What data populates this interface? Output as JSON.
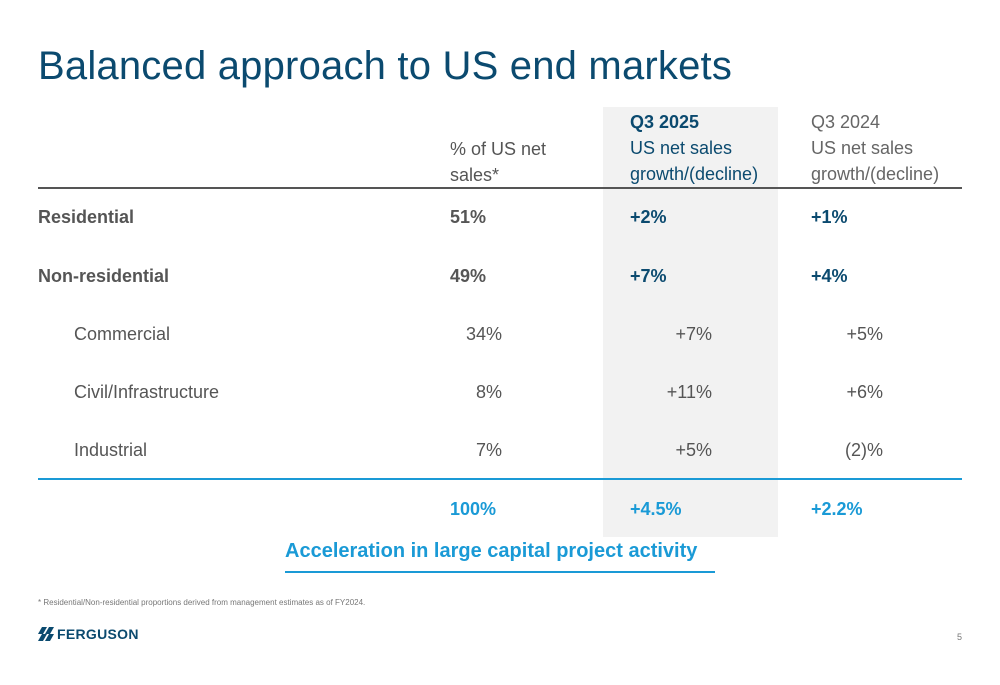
{
  "title": "Balanced approach to US end markets",
  "headers": {
    "pct": [
      "% of US net",
      "sales*"
    ],
    "q3_2025": [
      "Q3 2025",
      "US net sales",
      "growth/(decline)"
    ],
    "q3_2024": [
      "Q3 2024",
      "US net sales",
      "growth/(decline)"
    ]
  },
  "rows": [
    {
      "label": "Residential",
      "pct": "51%",
      "q3_2025": "+2%",
      "q3_2024": "+1%"
    },
    {
      "label": "Non-residential",
      "pct": "49%",
      "q3_2025": "+7%",
      "q3_2024": "+4%"
    },
    {
      "label": "Commercial",
      "pct": "34%",
      "q3_2025": "+7%",
      "q3_2024": "+5%"
    },
    {
      "label": "Civil/Infrastructure",
      "pct": "8%",
      "q3_2025": "+11%",
      "q3_2024": "+6%"
    },
    {
      "label": "Industrial",
      "pct": "7%",
      "q3_2025": "+5%",
      "q3_2024": "(2)%"
    }
  ],
  "total": {
    "pct": "100%",
    "q3_2025": "+4.5%",
    "q3_2024": "+2.2%"
  },
  "tagline": "Acceleration in large capital project activity",
  "footnote": "* Residential/Non-residential proportions derived from management estimates as of FY2024.",
  "logo_text": "FERGUSON",
  "page_number": "5",
  "colors": {
    "navy": "#0b4a6f",
    "accent": "#1a9ad6",
    "gray_text": "#555555"
  }
}
